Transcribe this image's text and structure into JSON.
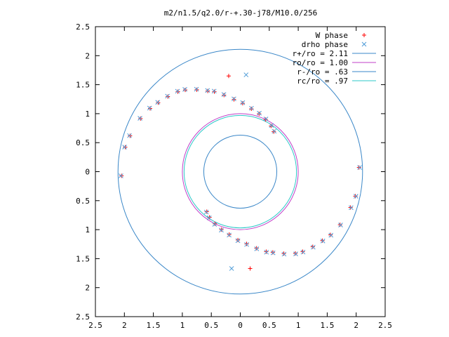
{
  "chart_data": {
    "type": "scatter",
    "title": "m2/n1.5/q2.0/r-+.30-j78/M10.0/256",
    "xlabel": "",
    "ylabel": "",
    "xlim": [
      -2.5,
      2.5
    ],
    "ylim": [
      -2.5,
      2.5
    ],
    "x_ticks": [
      -2.5,
      -2,
      -1.5,
      -1,
      -0.5,
      0,
      0.5,
      1,
      1.5,
      2,
      2.5
    ],
    "y_ticks": [
      -2.5,
      -2,
      -1.5,
      -1,
      -0.5,
      0,
      0.5,
      1,
      1.5,
      2,
      2.5
    ],
    "x_tick_labels": [
      "2.5",
      "2",
      "1.5",
      "1",
      "0.5",
      "0",
      "0.5",
      "1",
      "1.5",
      "2",
      "2.5"
    ],
    "y_tick_labels": [
      "2.5",
      "2",
      "1.5",
      "1",
      "0.5",
      "0",
      "0.5",
      "1",
      "1.5",
      "2",
      "2.5"
    ],
    "grid": false,
    "legend_position": "top-right",
    "series": [
      {
        "name": "W phase",
        "marker": "plus",
        "color": "#ff0000",
        "spiral_points": [
          {
            "r": 2.05,
            "theta_deg": 182
          },
          {
            "r": 2.03,
            "theta_deg": 168
          },
          {
            "r": 2.0,
            "theta_deg": 162
          },
          {
            "r": 1.95,
            "theta_deg": 152
          },
          {
            "r": 1.9,
            "theta_deg": 145
          },
          {
            "r": 1.85,
            "theta_deg": 140
          },
          {
            "r": 1.8,
            "theta_deg": 134
          },
          {
            "r": 1.75,
            "theta_deg": 128
          },
          {
            "r": 1.7,
            "theta_deg": 124
          },
          {
            "r": 1.6,
            "theta_deg": 118
          },
          {
            "r": 1.5,
            "theta_deg": 112
          },
          {
            "r": 1.45,
            "theta_deg": 108
          },
          {
            "r": 1.35,
            "theta_deg": 102
          },
          {
            "r": 1.25,
            "theta_deg": 95
          },
          {
            "r": 1.18,
            "theta_deg": 88
          },
          {
            "r": 1.1,
            "theta_deg": 80
          },
          {
            "r": 1.05,
            "theta_deg": 72
          },
          {
            "r": 1.0,
            "theta_deg": 64
          },
          {
            "r": 0.95,
            "theta_deg": 56
          },
          {
            "r": 0.9,
            "theta_deg": 50
          }
        ],
        "isolated_points": [
          {
            "x": -0.2,
            "y": 1.65
          },
          {
            "x": 0.17,
            "y": -1.67
          }
        ]
      },
      {
        "name": "drho phase",
        "marker": "cross",
        "color": "#4d9bd7",
        "spiral_points": [
          {
            "r": 2.06,
            "theta_deg": 182
          },
          {
            "r": 2.04,
            "theta_deg": 168
          },
          {
            "r": 2.01,
            "theta_deg": 162
          },
          {
            "r": 1.96,
            "theta_deg": 152
          },
          {
            "r": 1.91,
            "theta_deg": 145
          },
          {
            "r": 1.86,
            "theta_deg": 140
          },
          {
            "r": 1.81,
            "theta_deg": 134
          },
          {
            "r": 1.76,
            "theta_deg": 128
          },
          {
            "r": 1.71,
            "theta_deg": 124
          },
          {
            "r": 1.61,
            "theta_deg": 118
          },
          {
            "r": 1.51,
            "theta_deg": 112
          },
          {
            "r": 1.46,
            "theta_deg": 108
          },
          {
            "r": 1.36,
            "theta_deg": 102
          },
          {
            "r": 1.26,
            "theta_deg": 95
          },
          {
            "r": 1.19,
            "theta_deg": 88
          },
          {
            "r": 1.11,
            "theta_deg": 80
          },
          {
            "r": 1.06,
            "theta_deg": 72
          },
          {
            "r": 1.01,
            "theta_deg": 64
          },
          {
            "r": 0.96,
            "theta_deg": 56
          },
          {
            "r": 0.91,
            "theta_deg": 50
          }
        ],
        "isolated_points": [
          {
            "x": 0.1,
            "y": 1.67
          },
          {
            "x": -0.15,
            "y": -1.67
          }
        ]
      }
    ],
    "circles": [
      {
        "name": "r+/ro = 2.11",
        "r": 2.11,
        "color": "#3a87c8"
      },
      {
        "name": "ro/ro = 1.00",
        "r": 1.0,
        "color": "#c23fc8"
      },
      {
        "name": "r-/ro = .63",
        "r": 0.63,
        "color": "#3a87c8"
      },
      {
        "name": "rc/ro = .97",
        "r": 0.97,
        "color": "#2ec8c8"
      }
    ]
  }
}
